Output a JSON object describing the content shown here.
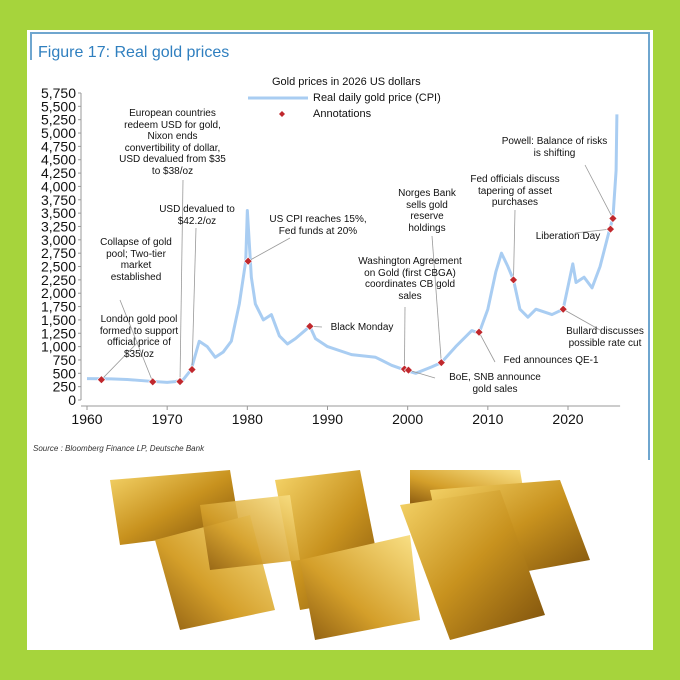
{
  "figure_title": "Figure 17: Real gold prices",
  "source": "Source : Bloomberg Finance LP, Deutsche Bank",
  "colors": {
    "background": "#a6d43c",
    "line": "#a9cdf2",
    "marker": "#c0282d",
    "title": "#2f7fbf"
  },
  "chart_data": {
    "type": "line",
    "title": "Figure 17: Real gold prices",
    "subtitle": "Gold prices in 2026 US dollars",
    "legend": [
      "Real daily gold price (CPI)",
      "Annotations"
    ],
    "legend_position": "top-center",
    "xlabel": "",
    "ylabel": "",
    "xlim": [
      1960,
      2026.5
    ],
    "ylim": [
      0,
      5750
    ],
    "xticks": [
      1960,
      1970,
      1980,
      1990,
      2000,
      2010,
      2020
    ],
    "yticks": [
      0,
      250,
      500,
      750,
      1000,
      1250,
      1500,
      1750,
      2000,
      2250,
      2500,
      2750,
      3000,
      3250,
      3500,
      3750,
      4000,
      4250,
      4500,
      4750,
      5000,
      5250,
      5500,
      5750
    ],
    "ytick_labels": [
      "0",
      "250",
      "500",
      "750",
      "1,000",
      "1,250",
      "1,500",
      "1,750",
      "2,000",
      "2,250",
      "2,500",
      "2,750",
      "3,000",
      "3,250",
      "3,500",
      "3,750",
      "4,000",
      "4,250",
      "4,500",
      "4,750",
      "5,000",
      "5,250",
      "5,500",
      "5,750"
    ],
    "series": [
      {
        "name": "Real daily gold price (CPI)",
        "x": [
          1960,
          1963,
          1965,
          1968,
          1970,
          1971,
          1972,
          1973,
          1974,
          1975,
          1976,
          1977,
          1978,
          1979,
          1979.8,
          1980,
          1980.5,
          1981,
          1982,
          1983,
          1984,
          1985,
          1986,
          1987.8,
          1988.5,
          1990,
          1993,
          1996,
          1998,
          1999.5,
          2001,
          2003,
          2004.2,
          2006,
          2008,
          2008.9,
          2010,
          2011,
          2011.7,
          2012.5,
          2013.2,
          2014,
          2015,
          2016,
          2018,
          2019.4,
          2020.6,
          2021,
          2022,
          2023,
          2024,
          2025.2,
          2025.6,
          2026,
          2026.1
        ],
        "values": [
          400,
          395,
          385,
          350,
          330,
          345,
          380,
          570,
          1100,
          1000,
          800,
          900,
          1100,
          1800,
          2600,
          3550,
          2300,
          1800,
          1500,
          1600,
          1200,
          1050,
          1150,
          1380,
          1150,
          1000,
          850,
          800,
          650,
          570,
          500,
          620,
          700,
          1000,
          1300,
          1250,
          1700,
          2400,
          2750,
          2500,
          2250,
          1700,
          1550,
          1700,
          1600,
          1700,
          2550,
          2200,
          2300,
          2100,
          2500,
          3200,
          3400,
          4300,
          5350
        ]
      }
    ],
    "annotations": [
      {
        "x": 1961.8,
        "y": 380,
        "label": "London gold pool\nformed to support\nofficial price of\n$35/oz"
      },
      {
        "x": 1968.2,
        "y": 340,
        "label": "Collapse of gold\npool; Two-tier\nmarket\nestablished"
      },
      {
        "x": 1971.6,
        "y": 345,
        "label": "European countries\nredeem USD for gold,\nNixon ends\nconvertibility of dollar,\nUSD devalued from $35\nto $38/oz"
      },
      {
        "x": 1973.1,
        "y": 570,
        "label": "USD devalued to\n$42.2/oz"
      },
      {
        "x": 1980.1,
        "y": 2600,
        "label": "US CPI reaches 15%,\nFed funds at 20%"
      },
      {
        "x": 1987.8,
        "y": 1380,
        "label": "Black Monday"
      },
      {
        "x": 1999.6,
        "y": 580,
        "label": "Washington Agreement\non Gold (first CBGA)\ncoordinates CB gold\nsales"
      },
      {
        "x": 2000.1,
        "y": 560,
        "label": "BoE, SNB announce\ngold sales"
      },
      {
        "x": 2004.2,
        "y": 700,
        "label": "Norges Bank\nsells gold\nreserve\nholdings"
      },
      {
        "x": 2008.9,
        "y": 1270,
        "label": "Fed announces QE-1"
      },
      {
        "x": 2013.2,
        "y": 2250,
        "label": "Fed officials discuss\ntapering of asset\npurchases"
      },
      {
        "x": 2019.4,
        "y": 1700,
        "label": "Bullard discusses\npossible rate cut"
      },
      {
        "x": 2025.3,
        "y": 3200,
        "label": "Liberation Day"
      },
      {
        "x": 2025.6,
        "y": 3400,
        "label": "Powell: Balance of risks\nis shifting"
      }
    ]
  }
}
